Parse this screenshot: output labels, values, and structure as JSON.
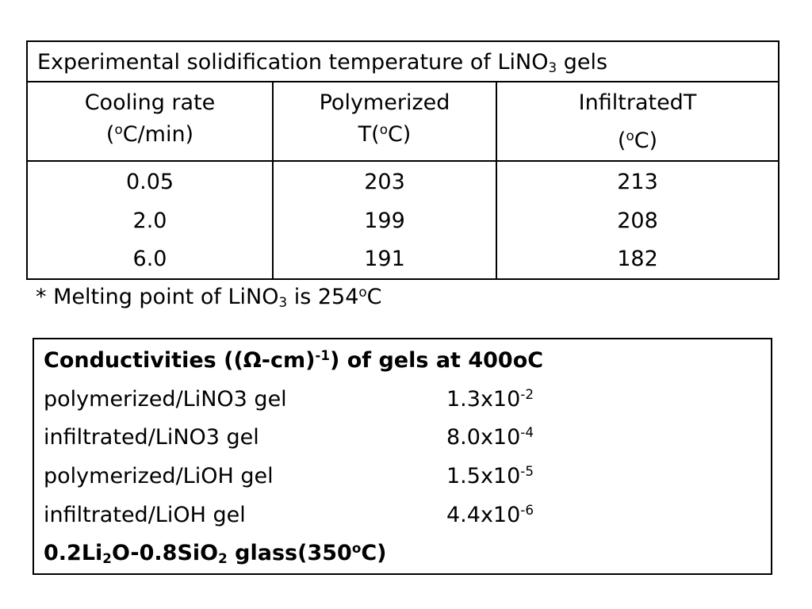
{
  "table": {
    "title": {
      "pre": "Experimental solidification temperature of LiNO",
      "sub": "3",
      "post": " gels"
    },
    "columns": [
      {
        "line1": "Cooling rate",
        "line2_pre": "(",
        "line2_sup": "o",
        "line2_post": "C/min)"
      },
      {
        "line1": "Polymerized",
        "line2_pre": "T(",
        "line2_sup": "o",
        "line2_post": "C)"
      },
      {
        "line1": "InfiltratedT",
        "line2_pre": "(",
        "line2_sup": "o",
        "line2_post": "C)"
      }
    ],
    "rows": [
      [
        "0.05",
        "203",
        "213"
      ],
      [
        "2.0",
        "199",
        "208"
      ],
      [
        "6.0",
        "191",
        "182"
      ]
    ]
  },
  "note": {
    "pre": "* Melting point of LiNO",
    "sub": "3",
    "mid": " is 254",
    "sup": "o",
    "post": "C"
  },
  "conductivity": {
    "title": {
      "pre": "Conductivities ((",
      "symbol": "Ω",
      "mid": "-cm)",
      "sup": "-1",
      "post": ") of gels at 400oC"
    },
    "items": [
      {
        "label": "polymerized/LiNO3 gel",
        "base": "1.3x10",
        "exp": "-2"
      },
      {
        "label": "infiltrated/LiNO3 gel",
        "base": "8.0x10",
        "exp": "-4"
      },
      {
        "label": "polymerized/LiOH gel",
        "base": "1.5x10",
        "exp": "-5"
      },
      {
        "label": "infiltrated/LiOH gel",
        "base": "4.4x10",
        "exp": "-6"
      }
    ],
    "footer": {
      "p1": "0.2Li",
      "s1": "2",
      "p2": "O-0.8SiO",
      "s2": "2",
      "p3": " glass(350",
      "sup": "o",
      "p4": "C)"
    }
  }
}
